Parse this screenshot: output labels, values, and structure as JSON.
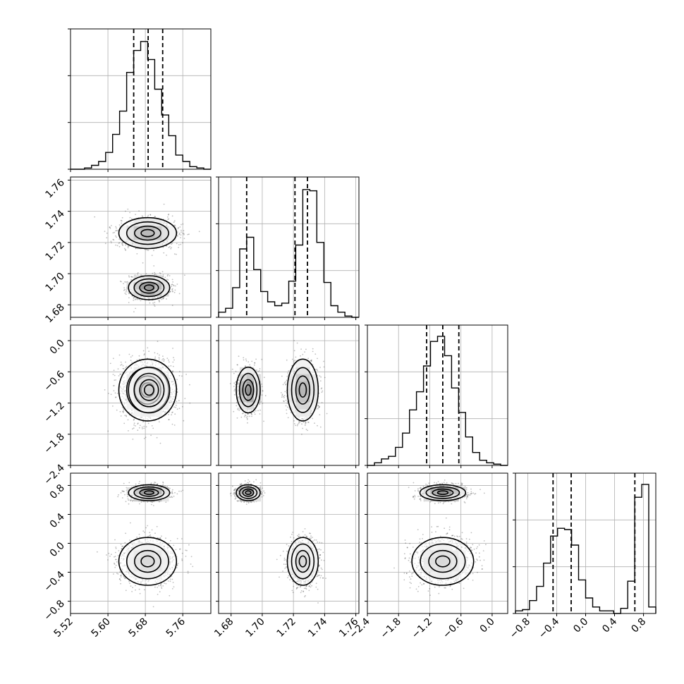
{
  "chart_data": {
    "type": "corner",
    "title": "",
    "grid": true,
    "dimensions": 4,
    "axes": [
      {
        "name": "",
        "range": [
          5.52,
          5.82
        ],
        "ticks": [
          "5.52",
          "5.60",
          "5.68",
          "5.76"
        ],
        "tick_values": [
          5.52,
          5.6,
          5.68,
          5.76
        ]
      },
      {
        "name": "",
        "range": [
          1.672,
          1.762
        ],
        "ticks": [
          "1.68",
          "1.70",
          "1.72",
          "1.74",
          "1.76"
        ],
        "tick_values": [
          1.68,
          1.7,
          1.72,
          1.74,
          1.76
        ]
      },
      {
        "name": "",
        "range": [
          -2.4,
          0.3
        ],
        "ticks": [
          "−2.4",
          "−1.8",
          "−1.2",
          "−0.6",
          "0.0"
        ],
        "tick_values": [
          -2.4,
          -1.8,
          -1.2,
          -0.6,
          0.0
        ]
      },
      {
        "name": "",
        "range": [
          -0.97,
          0.97
        ],
        "ticks": [
          "−0.8",
          "−0.4",
          "0.0",
          "0.4",
          "0.8"
        ],
        "tick_values": [
          -0.8,
          -0.4,
          0.0,
          0.4,
          0.8
        ]
      }
    ],
    "quantiles": [
      [
        5.655,
        5.686,
        5.717
      ],
      [
        1.69,
        1.721,
        1.729
      ],
      [
        -1.26,
        -0.95,
        -0.64
      ],
      [
        -0.45,
        -0.2,
        0.68
      ]
    ],
    "histograms": [
      {
        "bins": [
          5.52,
          5.82
        ],
        "counts": [
          0,
          0,
          0.01,
          0.03,
          0.06,
          0.13,
          0.27,
          0.45,
          0.75,
          0.92,
          0.99,
          0.85,
          0.62,
          0.42,
          0.26,
          0.11,
          0.06,
          0.02,
          0.01,
          0
        ]
      },
      {
        "bins": [
          1.672,
          1.762
        ],
        "counts": [
          0.04,
          0.07,
          0.23,
          0.53,
          0.62,
          0.37,
          0.2,
          0.12,
          0.09,
          0.11,
          0.28,
          0.56,
          0.99,
          0.98,
          0.58,
          0.27,
          0.09,
          0.04,
          0.01,
          0
        ]
      },
      {
        "bins": [
          -2.4,
          0.3
        ],
        "counts": [
          0,
          0.02,
          0.05,
          0.07,
          0.14,
          0.25,
          0.43,
          0.57,
          0.77,
          0.96,
          1.0,
          0.85,
          0.6,
          0.41,
          0.22,
          0.1,
          0.04,
          0.02,
          0.01,
          0
        ]
      },
      {
        "bins": [
          -0.97,
          0.97
        ],
        "counts": [
          0.02,
          0.03,
          0.1,
          0.21,
          0.39,
          0.6,
          0.66,
          0.65,
          0.53,
          0.26,
          0.12,
          0.05,
          0.02,
          0.02,
          0.0,
          0.04,
          0.25,
          0.9,
          1.0,
          0.05
        ]
      }
    ],
    "modes": [
      {
        "weight": 0.55,
        "mean": [
          5.685,
          1.726,
          -0.95,
          -0.25
        ],
        "sd": [
          0.028,
          0.0045,
          0.27,
          0.15
        ]
      },
      {
        "weight": 0.45,
        "mean": [
          5.688,
          1.691,
          -0.95,
          0.7
        ],
        "sd": [
          0.02,
          0.0035,
          0.2,
          0.05
        ]
      }
    ]
  }
}
